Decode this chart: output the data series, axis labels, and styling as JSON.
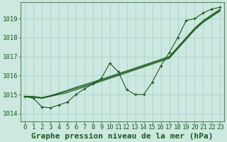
{
  "title": "Graphe pression niveau de la mer (hPa)",
  "bg_color": "#cce8e0",
  "grid_color": "#b0d8d0",
  "line_color": "#1a5c1a",
  "marker_color": "#1a5c1a",
  "tick_color": "#1a5c1a",
  "border_color": "#5a8a5a",
  "x_ticks": [
    0,
    1,
    2,
    3,
    4,
    5,
    6,
    7,
    8,
    9,
    10,
    11,
    12,
    13,
    14,
    15,
    16,
    17,
    18,
    19,
    20,
    21,
    22,
    23
  ],
  "ylim": [
    1013.6,
    1019.85
  ],
  "yticks": [
    1014,
    1015,
    1016,
    1017,
    1018,
    1019
  ],
  "series_straight": [
    [
      1014.9,
      1014.85,
      1014.8,
      1014.9,
      1015.0,
      1015.1,
      1015.25,
      1015.4,
      1015.55,
      1015.7,
      1015.85,
      1016.0,
      1016.15,
      1016.3,
      1016.45,
      1016.6,
      1016.75,
      1016.9,
      1017.4,
      1017.9,
      1018.4,
      1018.8,
      1019.1,
      1019.4
    ],
    [
      1014.9,
      1014.88,
      1014.82,
      1014.92,
      1015.05,
      1015.18,
      1015.32,
      1015.46,
      1015.6,
      1015.75,
      1015.9,
      1016.05,
      1016.2,
      1016.35,
      1016.5,
      1016.65,
      1016.8,
      1016.95,
      1017.45,
      1017.95,
      1018.45,
      1018.85,
      1019.15,
      1019.45
    ],
    [
      1014.9,
      1014.9,
      1014.84,
      1014.94,
      1015.08,
      1015.22,
      1015.38,
      1015.52,
      1015.66,
      1015.8,
      1015.95,
      1016.1,
      1016.25,
      1016.4,
      1016.55,
      1016.7,
      1016.85,
      1017.0,
      1017.5,
      1018.0,
      1018.5,
      1018.9,
      1019.2,
      1019.5
    ]
  ],
  "series_marker": [
    1014.9,
    1014.8,
    1014.35,
    1014.3,
    1014.45,
    1014.6,
    1015.0,
    1015.3,
    1015.55,
    1015.85,
    1016.65,
    1016.2,
    1015.25,
    1015.0,
    1015.0,
    1015.65,
    1016.5,
    1017.2,
    1018.0,
    1018.9,
    1019.0,
    1019.3,
    1019.5,
    1019.6
  ],
  "title_fontsize": 8,
  "tick_fontsize": 6.5,
  "xlabel_fontsize": 8
}
